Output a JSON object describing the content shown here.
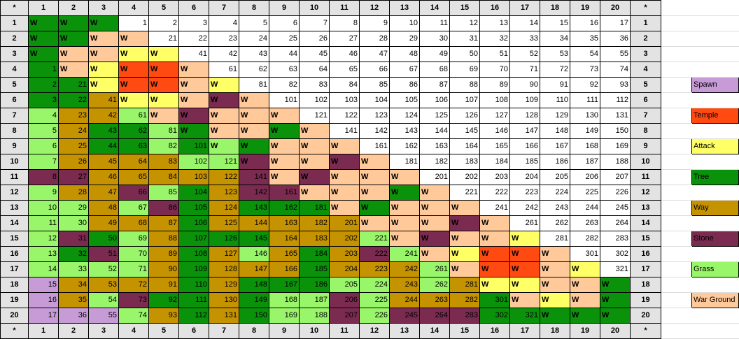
{
  "colors": {
    "Spawn": "#c79bd6",
    "Temple": "#ff4a12",
    "Attack": "#ffff66",
    "Tree": "#0a920a",
    "Way": "#c69300",
    "Stone": "#7b2a50",
    "Grass": "#99f56a",
    "War Ground": "#ffc99a",
    "empty": "#ffffff",
    "header": "#e3e3e3"
  },
  "corner_label": "*",
  "col_headers": [
    "1",
    "2",
    "3",
    "4",
    "5",
    "6",
    "7",
    "8",
    "9",
    "10",
    "11",
    "12",
    "13",
    "14",
    "15",
    "16",
    "17",
    "18",
    "19",
    "20"
  ],
  "row_labels": [
    "1",
    "2",
    "3",
    "4",
    "5",
    "6",
    "7",
    "8",
    "9",
    "10",
    "11",
    "12",
    "13",
    "14",
    "15",
    "16",
    "17",
    "18",
    "19",
    "20"
  ],
  "legend": [
    {
      "row": 5,
      "label": "Spawn",
      "key": "Spawn"
    },
    {
      "row": 7,
      "label": "Temple",
      "key": "Temple"
    },
    {
      "row": 9,
      "label": "Attack",
      "key": "Attack"
    },
    {
      "row": 11,
      "label": "Tree",
      "key": "Tree"
    },
    {
      "row": 13,
      "label": "Way",
      "key": "Way"
    },
    {
      "row": 15,
      "label": "Stone",
      "key": "Stone"
    },
    {
      "row": 17,
      "label": "Grass",
      "key": "Grass"
    },
    {
      "row": 19,
      "label": "War Ground",
      "key": "War Ground"
    }
  ],
  "grid": [
    [
      [
        "W",
        "Tree"
      ],
      [
        "W",
        "Tree"
      ],
      [
        "W",
        "Tree"
      ],
      [
        "1",
        ""
      ],
      [
        "2",
        ""
      ],
      [
        "3",
        ""
      ],
      [
        "4",
        ""
      ],
      [
        "5",
        ""
      ],
      [
        "6",
        ""
      ],
      [
        "7",
        ""
      ],
      [
        "8",
        ""
      ],
      [
        "9",
        ""
      ],
      [
        "10",
        ""
      ],
      [
        "11",
        ""
      ],
      [
        "12",
        ""
      ],
      [
        "13",
        ""
      ],
      [
        "14",
        ""
      ],
      [
        "15",
        ""
      ],
      [
        "16",
        ""
      ],
      [
        "17",
        ""
      ]
    ],
    [
      [
        "W",
        "Tree"
      ],
      [
        "W",
        "Tree"
      ],
      [
        "W",
        "War Ground"
      ],
      [
        "W",
        "War Ground"
      ],
      [
        "21",
        ""
      ],
      [
        "22",
        ""
      ],
      [
        "23",
        ""
      ],
      [
        "24",
        ""
      ],
      [
        "25",
        ""
      ],
      [
        "26",
        ""
      ],
      [
        "27",
        ""
      ],
      [
        "28",
        ""
      ],
      [
        "29",
        ""
      ],
      [
        "30",
        ""
      ],
      [
        "31",
        ""
      ],
      [
        "32",
        ""
      ],
      [
        "33",
        ""
      ],
      [
        "34",
        ""
      ],
      [
        "35",
        ""
      ],
      [
        "36",
        ""
      ]
    ],
    [
      [
        "W",
        "Tree"
      ],
      [
        "W",
        "War Ground"
      ],
      [
        "W",
        "War Ground"
      ],
      [
        "W",
        "Attack"
      ],
      [
        "W",
        "Attack"
      ],
      [
        "41",
        ""
      ],
      [
        "42",
        ""
      ],
      [
        "43",
        ""
      ],
      [
        "44",
        ""
      ],
      [
        "45",
        ""
      ],
      [
        "46",
        ""
      ],
      [
        "47",
        ""
      ],
      [
        "48",
        ""
      ],
      [
        "49",
        ""
      ],
      [
        "50",
        ""
      ],
      [
        "51",
        ""
      ],
      [
        "52",
        ""
      ],
      [
        "53",
        ""
      ],
      [
        "54",
        ""
      ],
      [
        "55",
        ""
      ]
    ],
    [
      [
        "1",
        "Tree"
      ],
      [
        "W",
        "War Ground"
      ],
      [
        "W",
        "Attack"
      ],
      [
        "W",
        "Temple"
      ],
      [
        "W",
        "Temple"
      ],
      [
        "W",
        "War Ground"
      ],
      [
        "61",
        ""
      ],
      [
        "62",
        ""
      ],
      [
        "63",
        ""
      ],
      [
        "64",
        ""
      ],
      [
        "65",
        ""
      ],
      [
        "66",
        ""
      ],
      [
        "67",
        ""
      ],
      [
        "68",
        ""
      ],
      [
        "69",
        ""
      ],
      [
        "70",
        ""
      ],
      [
        "71",
        ""
      ],
      [
        "72",
        ""
      ],
      [
        "73",
        ""
      ],
      [
        "74",
        ""
      ]
    ],
    [
      [
        "2",
        "Tree"
      ],
      [
        "21",
        "Tree"
      ],
      [
        "W",
        "Attack"
      ],
      [
        "W",
        "Temple"
      ],
      [
        "W",
        "Temple"
      ],
      [
        "W",
        "War Ground"
      ],
      [
        "W",
        "Attack"
      ],
      [
        "81",
        ""
      ],
      [
        "82",
        ""
      ],
      [
        "83",
        ""
      ],
      [
        "84",
        ""
      ],
      [
        "85",
        ""
      ],
      [
        "86",
        ""
      ],
      [
        "87",
        ""
      ],
      [
        "88",
        ""
      ],
      [
        "89",
        ""
      ],
      [
        "90",
        ""
      ],
      [
        "91",
        ""
      ],
      [
        "92",
        ""
      ],
      [
        "93",
        ""
      ]
    ],
    [
      [
        "3",
        "Tree"
      ],
      [
        "22",
        "Tree"
      ],
      [
        "41",
        "Way"
      ],
      [
        "W",
        "Attack"
      ],
      [
        "W",
        "Attack"
      ],
      [
        "W",
        "War Ground"
      ],
      [
        "W",
        "Stone"
      ],
      [
        "W",
        "War Ground"
      ],
      [
        "101",
        ""
      ],
      [
        "102",
        ""
      ],
      [
        "103",
        ""
      ],
      [
        "104",
        ""
      ],
      [
        "105",
        ""
      ],
      [
        "106",
        ""
      ],
      [
        "107",
        ""
      ],
      [
        "108",
        ""
      ],
      [
        "109",
        ""
      ],
      [
        "110",
        ""
      ],
      [
        "111",
        ""
      ],
      [
        "112",
        ""
      ]
    ],
    [
      [
        "4",
        "Grass"
      ],
      [
        "23",
        "Way"
      ],
      [
        "42",
        "Way"
      ],
      [
        "61",
        "Grass"
      ],
      [
        "W",
        "War Ground"
      ],
      [
        "W",
        "Stone"
      ],
      [
        "W",
        "War Ground"
      ],
      [
        "W",
        "War Ground"
      ],
      [
        "W",
        "War Ground"
      ],
      [
        "121",
        ""
      ],
      [
        "122",
        ""
      ],
      [
        "123",
        ""
      ],
      [
        "124",
        ""
      ],
      [
        "125",
        ""
      ],
      [
        "126",
        ""
      ],
      [
        "127",
        ""
      ],
      [
        "128",
        ""
      ],
      [
        "129",
        ""
      ],
      [
        "130",
        ""
      ],
      [
        "131",
        ""
      ]
    ],
    [
      [
        "5",
        "Grass"
      ],
      [
        "24",
        "Way"
      ],
      [
        "43",
        "Tree"
      ],
      [
        "62",
        "Tree"
      ],
      [
        "81",
        "Grass"
      ],
      [
        "W",
        "Tree"
      ],
      [
        "W",
        "War Ground"
      ],
      [
        "W",
        "War Ground"
      ],
      [
        "W",
        "Tree"
      ],
      [
        "W",
        "War Ground"
      ],
      [
        "141",
        ""
      ],
      [
        "142",
        ""
      ],
      [
        "143",
        ""
      ],
      [
        "144",
        ""
      ],
      [
        "145",
        ""
      ],
      [
        "146",
        ""
      ],
      [
        "147",
        ""
      ],
      [
        "148",
        ""
      ],
      [
        "149",
        ""
      ],
      [
        "150",
        ""
      ]
    ],
    [
      [
        "6",
        "Grass"
      ],
      [
        "25",
        "Way"
      ],
      [
        "44",
        "Tree"
      ],
      [
        "63",
        "Tree"
      ],
      [
        "82",
        "Grass"
      ],
      [
        "101",
        "Tree"
      ],
      [
        "W",
        "Grass"
      ],
      [
        "W",
        "Tree"
      ],
      [
        "W",
        "War Ground"
      ],
      [
        "W",
        "War Ground"
      ],
      [
        "W",
        "War Ground"
      ],
      [
        "161",
        ""
      ],
      [
        "162",
        ""
      ],
      [
        "163",
        ""
      ],
      [
        "164",
        ""
      ],
      [
        "165",
        ""
      ],
      [
        "166",
        ""
      ],
      [
        "167",
        ""
      ],
      [
        "168",
        ""
      ],
      [
        "169",
        ""
      ]
    ],
    [
      [
        "7",
        "Grass"
      ],
      [
        "26",
        "Way"
      ],
      [
        "45",
        "Way"
      ],
      [
        "64",
        "Way"
      ],
      [
        "83",
        "Way"
      ],
      [
        "102",
        "Grass"
      ],
      [
        "121",
        "Grass"
      ],
      [
        "W",
        "Stone"
      ],
      [
        "W",
        "War Ground"
      ],
      [
        "W",
        "War Ground"
      ],
      [
        "W",
        "Stone"
      ],
      [
        "W",
        "War Ground"
      ],
      [
        "181",
        ""
      ],
      [
        "182",
        ""
      ],
      [
        "183",
        ""
      ],
      [
        "184",
        ""
      ],
      [
        "185",
        ""
      ],
      [
        "186",
        ""
      ],
      [
        "187",
        ""
      ],
      [
        "188",
        ""
      ]
    ],
    [
      [
        "8",
        "Stone"
      ],
      [
        "27",
        "Stone"
      ],
      [
        "46",
        "Way"
      ],
      [
        "65",
        "Way"
      ],
      [
        "84",
        "Way"
      ],
      [
        "103",
        "Way"
      ],
      [
        "122",
        "Way"
      ],
      [
        "141",
        "Stone"
      ],
      [
        "W",
        "War Ground"
      ],
      [
        "W",
        "Stone"
      ],
      [
        "W",
        "War Ground"
      ],
      [
        "W",
        "War Ground"
      ],
      [
        "W",
        "War Ground"
      ],
      [
        "201",
        ""
      ],
      [
        "202",
        ""
      ],
      [
        "203",
        ""
      ],
      [
        "204",
        ""
      ],
      [
        "205",
        ""
      ],
      [
        "206",
        ""
      ],
      [
        "207",
        ""
      ]
    ],
    [
      [
        "9",
        "Grass"
      ],
      [
        "28",
        "Way"
      ],
      [
        "47",
        "Way"
      ],
      [
        "66",
        "Stone"
      ],
      [
        "85",
        "Grass"
      ],
      [
        "104",
        "Tree"
      ],
      [
        "123",
        "Way"
      ],
      [
        "142",
        "Stone"
      ],
      [
        "161",
        "Stone"
      ],
      [
        "W",
        "War Ground"
      ],
      [
        "W",
        "War Ground"
      ],
      [
        "W",
        "War Ground"
      ],
      [
        "W",
        "Tree"
      ],
      [
        "W",
        "War Ground"
      ],
      [
        "221",
        ""
      ],
      [
        "222",
        ""
      ],
      [
        "223",
        ""
      ],
      [
        "224",
        ""
      ],
      [
        "225",
        ""
      ],
      [
        "226",
        ""
      ]
    ],
    [
      [
        "10",
        "Grass"
      ],
      [
        "29",
        "Grass"
      ],
      [
        "48",
        "Way"
      ],
      [
        "67",
        "Grass"
      ],
      [
        "86",
        "Stone"
      ],
      [
        "105",
        "Tree"
      ],
      [
        "124",
        "Way"
      ],
      [
        "143",
        "Tree"
      ],
      [
        "162",
        "Tree"
      ],
      [
        "181",
        "Tree"
      ],
      [
        "W",
        "War Ground"
      ],
      [
        "W",
        "Tree"
      ],
      [
        "W",
        "War Ground"
      ],
      [
        "W",
        "War Ground"
      ],
      [
        "W",
        "War Ground"
      ],
      [
        "241",
        ""
      ],
      [
        "242",
        ""
      ],
      [
        "243",
        ""
      ],
      [
        "244",
        ""
      ],
      [
        "245",
        ""
      ]
    ],
    [
      [
        "11",
        "Grass"
      ],
      [
        "30",
        "Grass"
      ],
      [
        "49",
        "Way"
      ],
      [
        "68",
        "Way"
      ],
      [
        "87",
        "Way"
      ],
      [
        "106",
        "Tree"
      ],
      [
        "125",
        "Way"
      ],
      [
        "144",
        "Way"
      ],
      [
        "163",
        "Way"
      ],
      [
        "182",
        "Way"
      ],
      [
        "201",
        "Way"
      ],
      [
        "W",
        "War Ground"
      ],
      [
        "W",
        "War Ground"
      ],
      [
        "W",
        "War Ground"
      ],
      [
        "W",
        "Stone"
      ],
      [
        "W",
        "War Ground"
      ],
      [
        "261",
        ""
      ],
      [
        "262",
        ""
      ],
      [
        "263",
        ""
      ],
      [
        "264",
        ""
      ]
    ],
    [
      [
        "12",
        "Grass"
      ],
      [
        "31",
        "Stone"
      ],
      [
        "50",
        "Tree"
      ],
      [
        "69",
        "Grass"
      ],
      [
        "88",
        "Way"
      ],
      [
        "107",
        "Tree"
      ],
      [
        "126",
        "Tree"
      ],
      [
        "145",
        "Tree"
      ],
      [
        "164",
        "Way"
      ],
      [
        "183",
        "Way"
      ],
      [
        "202",
        "Way"
      ],
      [
        "221",
        "Grass"
      ],
      [
        "W",
        "War Ground"
      ],
      [
        "W",
        "Stone"
      ],
      [
        "W",
        "War Ground"
      ],
      [
        "W",
        "War Ground"
      ],
      [
        "W",
        "Attack"
      ],
      [
        "281",
        ""
      ],
      [
        "282",
        ""
      ],
      [
        "283",
        ""
      ]
    ],
    [
      [
        "13",
        "Grass"
      ],
      [
        "32",
        "Tree"
      ],
      [
        "51",
        "Stone"
      ],
      [
        "70",
        "Grass"
      ],
      [
        "89",
        "Way"
      ],
      [
        "108",
        "Tree"
      ],
      [
        "127",
        "Way"
      ],
      [
        "146",
        "Grass"
      ],
      [
        "165",
        "Way"
      ],
      [
        "184",
        "Tree"
      ],
      [
        "203",
        "Way"
      ],
      [
        "222",
        "Stone"
      ],
      [
        "241",
        "Grass"
      ],
      [
        "W",
        "War Ground"
      ],
      [
        "W",
        "Attack"
      ],
      [
        "W",
        "Temple"
      ],
      [
        "W",
        "Temple"
      ],
      [
        "W",
        "War Ground"
      ],
      [
        "301",
        ""
      ],
      [
        "302",
        ""
      ]
    ],
    [
      [
        "14",
        "Grass"
      ],
      [
        "33",
        "Grass"
      ],
      [
        "52",
        "Grass"
      ],
      [
        "71",
        "Grass"
      ],
      [
        "90",
        "Way"
      ],
      [
        "109",
        "Tree"
      ],
      [
        "128",
        "Way"
      ],
      [
        "147",
        "Way"
      ],
      [
        "166",
        "Way"
      ],
      [
        "185",
        "Tree"
      ],
      [
        "204",
        "Way"
      ],
      [
        "223",
        "Way"
      ],
      [
        "242",
        "Way"
      ],
      [
        "261",
        "Grass"
      ],
      [
        "W",
        "War Ground"
      ],
      [
        "W",
        "Temple"
      ],
      [
        "W",
        "Temple"
      ],
      [
        "W",
        "War Ground"
      ],
      [
        "W",
        "Attack"
      ],
      [
        "321",
        ""
      ]
    ],
    [
      [
        "15",
        "Spawn"
      ],
      [
        "34",
        "Way"
      ],
      [
        "53",
        "Way"
      ],
      [
        "72",
        "Way"
      ],
      [
        "91",
        "Way"
      ],
      [
        "110",
        "Tree"
      ],
      [
        "129",
        "Way"
      ],
      [
        "148",
        "Tree"
      ],
      [
        "167",
        "Tree"
      ],
      [
        "186",
        "Tree"
      ],
      [
        "205",
        "Grass"
      ],
      [
        "224",
        "Grass"
      ],
      [
        "243",
        "Way"
      ],
      [
        "262",
        "Grass"
      ],
      [
        "281",
        "Way"
      ],
      [
        "W",
        "Attack"
      ],
      [
        "W",
        "Attack"
      ],
      [
        "W",
        "War Ground"
      ],
      [
        "W",
        "War Ground"
      ],
      [
        "W",
        "Tree"
      ]
    ],
    [
      [
        "16",
        "Spawn"
      ],
      [
        "35",
        "Way"
      ],
      [
        "54",
        "Grass"
      ],
      [
        "73",
        "Stone"
      ],
      [
        "92",
        "Tree"
      ],
      [
        "111",
        "Tree"
      ],
      [
        "130",
        "Way"
      ],
      [
        "149",
        "Tree"
      ],
      [
        "168",
        "Grass"
      ],
      [
        "187",
        "Grass"
      ],
      [
        "206",
        "Stone"
      ],
      [
        "225",
        "Grass"
      ],
      [
        "244",
        "Way"
      ],
      [
        "263",
        "Way"
      ],
      [
        "282",
        "Way"
      ],
      [
        "301",
        "Tree"
      ],
      [
        "W",
        "War Ground"
      ],
      [
        "W",
        "Attack"
      ],
      [
        "W",
        "War Ground"
      ],
      [
        "W",
        "Tree"
      ]
    ],
    [
      [
        "17",
        "Spawn"
      ],
      [
        "36",
        "Spawn"
      ],
      [
        "55",
        "Spawn"
      ],
      [
        "74",
        "Grass"
      ],
      [
        "93",
        "Way"
      ],
      [
        "112",
        "Tree"
      ],
      [
        "131",
        "Way"
      ],
      [
        "150",
        "Tree"
      ],
      [
        "169",
        "Grass"
      ],
      [
        "188",
        "Grass"
      ],
      [
        "207",
        "Stone"
      ],
      [
        "226",
        "Grass"
      ],
      [
        "245",
        "Stone"
      ],
      [
        "264",
        "Stone"
      ],
      [
        "283",
        "Stone"
      ],
      [
        "302",
        "Tree"
      ],
      [
        "321",
        "Tree"
      ],
      [
        "W",
        "Tree"
      ],
      [
        "W",
        "Tree"
      ],
      [
        "W",
        "Tree"
      ]
    ]
  ]
}
